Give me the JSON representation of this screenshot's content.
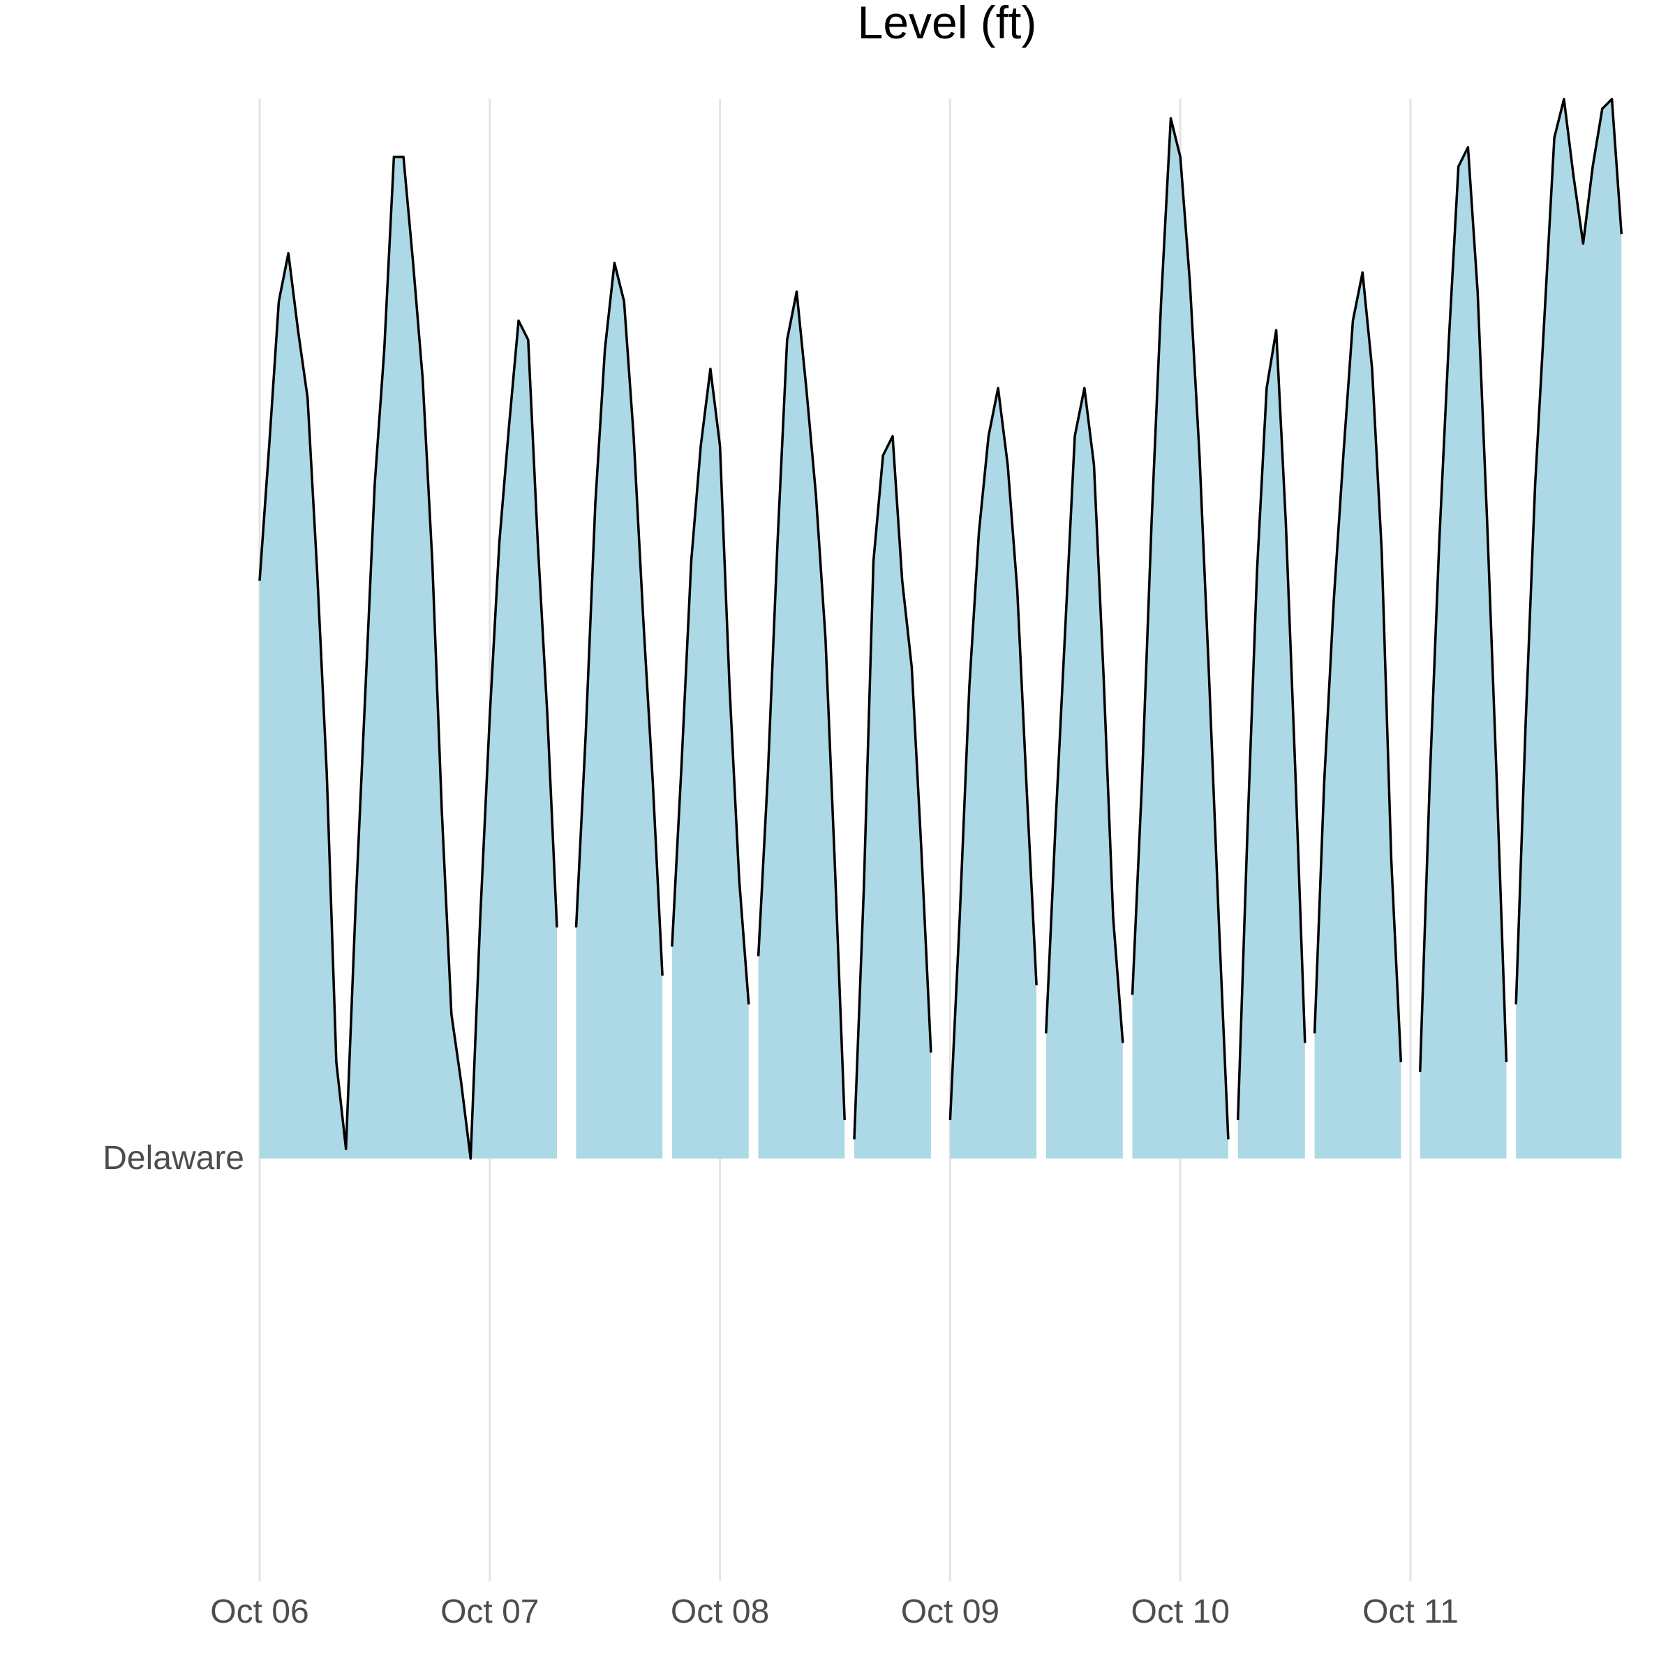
{
  "chart_data": {
    "type": "area",
    "title": "Level (ft)",
    "xlabel": "",
    "ylabel": "",
    "row_label": "Delaware",
    "x_ticks": [
      "Oct 06",
      "Oct 07",
      "Oct 08",
      "Oct 09",
      "Oct 10",
      "Oct 11"
    ],
    "x_range_days": [
      "Oct 06 00:00",
      "Oct 11 22:00"
    ],
    "ylim": [
      0,
      11
    ],
    "grid": "vertical-only",
    "fill_color": "#add8e6",
    "line_color": "#000000",
    "segments": [
      {
        "points": [
          [
            "Oct 06 00:00",
            6.0
          ],
          [
            "Oct 06 01:00",
            7.4
          ],
          [
            "Oct 06 02:00",
            8.9
          ],
          [
            "Oct 06 03:00",
            9.4
          ],
          [
            "Oct 06 04:00",
            8.6
          ],
          [
            "Oct 06 05:00",
            7.9
          ],
          [
            "Oct 06 06:00",
            6.1
          ],
          [
            "Oct 06 07:00",
            4.0
          ],
          [
            "Oct 06 08:00",
            1.0
          ],
          [
            "Oct 06 09:00",
            0.1
          ],
          [
            "Oct 06 10:00",
            2.6
          ],
          [
            "Oct 06 11:00",
            4.8
          ],
          [
            "Oct 06 12:00",
            7.0
          ],
          [
            "Oct 06 13:00",
            8.4
          ],
          [
            "Oct 06 14:00",
            10.4
          ],
          [
            "Oct 06 15:00",
            10.4
          ],
          [
            "Oct 06 16:00",
            9.3
          ],
          [
            "Oct 06 17:00",
            8.1
          ],
          [
            "Oct 06 18:00",
            6.2
          ],
          [
            "Oct 06 19:00",
            3.6
          ],
          [
            "Oct 06 20:00",
            1.5
          ],
          [
            "Oct 06 21:00",
            0.8
          ],
          [
            "Oct 06 22:00",
            0.0
          ],
          [
            "Oct 06 23:00",
            2.5
          ],
          [
            "Oct 07 00:00",
            4.6
          ],
          [
            "Oct 07 01:00",
            6.4
          ],
          [
            "Oct 07 02:00",
            7.6
          ],
          [
            "Oct 07 03:00",
            8.7
          ],
          [
            "Oct 07 04:00",
            8.5
          ],
          [
            "Oct 07 05:00",
            6.4
          ],
          [
            "Oct 07 06:00",
            4.6
          ],
          [
            "Oct 07 07:00",
            2.4
          ]
        ]
      },
      {
        "points": [
          [
            "Oct 07 09:00",
            2.4
          ],
          [
            "Oct 07 10:00",
            4.4
          ],
          [
            "Oct 07 11:00",
            6.8
          ],
          [
            "Oct 07 12:00",
            8.4
          ],
          [
            "Oct 07 13:00",
            9.3
          ],
          [
            "Oct 07 14:00",
            8.9
          ],
          [
            "Oct 07 15:00",
            7.5
          ],
          [
            "Oct 07 16:00",
            5.6
          ],
          [
            "Oct 07 17:00",
            3.9
          ],
          [
            "Oct 07 18:00",
            1.9
          ]
        ]
      },
      {
        "points": [
          [
            "Oct 07 19:00",
            2.2
          ],
          [
            "Oct 07 20:00",
            4.1
          ],
          [
            "Oct 07 21:00",
            6.2
          ],
          [
            "Oct 07 22:00",
            7.4
          ],
          [
            "Oct 07 23:00",
            8.2
          ],
          [
            "Oct 08 00:00",
            7.4
          ],
          [
            "Oct 08 01:00",
            4.9
          ],
          [
            "Oct 08 02:00",
            2.9
          ],
          [
            "Oct 08 03:00",
            1.6
          ]
        ]
      },
      {
        "points": [
          [
            "Oct 08 04:00",
            2.1
          ],
          [
            "Oct 08 05:00",
            4.0
          ],
          [
            "Oct 08 06:00",
            6.4
          ],
          [
            "Oct 08 07:00",
            8.5
          ],
          [
            "Oct 08 08:00",
            9.0
          ],
          [
            "Oct 08 09:00",
            8.0
          ],
          [
            "Oct 08 10:00",
            6.9
          ],
          [
            "Oct 08 11:00",
            5.4
          ],
          [
            "Oct 08 12:00",
            3.0
          ],
          [
            "Oct 08 13:00",
            0.4
          ]
        ]
      },
      {
        "points": [
          [
            "Oct 08 14:00",
            0.2
          ],
          [
            "Oct 08 15:00",
            2.8
          ],
          [
            "Oct 08 16:00",
            6.2
          ],
          [
            "Oct 08 17:00",
            7.3
          ],
          [
            "Oct 08 18:00",
            7.5
          ],
          [
            "Oct 08 19:00",
            6.0
          ],
          [
            "Oct 08 20:00",
            5.1
          ],
          [
            "Oct 08 21:00",
            3.2
          ],
          [
            "Oct 08 22:00",
            1.1
          ]
        ]
      },
      {
        "points": [
          [
            "Oct 09 00:00",
            0.4
          ],
          [
            "Oct 09 01:00",
            2.5
          ],
          [
            "Oct 09 02:00",
            4.9
          ],
          [
            "Oct 09 03:00",
            6.5
          ],
          [
            "Oct 09 04:00",
            7.5
          ],
          [
            "Oct 09 05:00",
            8.0
          ],
          [
            "Oct 09 06:00",
            7.2
          ],
          [
            "Oct 09 07:00",
            5.9
          ],
          [
            "Oct 09 08:00",
            3.8
          ],
          [
            "Oct 09 09:00",
            1.8
          ]
        ]
      },
      {
        "points": [
          [
            "Oct 09 10:00",
            1.3
          ],
          [
            "Oct 09 11:00",
            3.5
          ],
          [
            "Oct 09 12:00",
            5.5
          ],
          [
            "Oct 09 13:00",
            7.5
          ],
          [
            "Oct 09 14:00",
            8.0
          ],
          [
            "Oct 09 15:00",
            7.2
          ],
          [
            "Oct 09 16:00",
            5.0
          ],
          [
            "Oct 09 17:00",
            2.5
          ],
          [
            "Oct 09 18:00",
            1.2
          ]
        ]
      },
      {
        "points": [
          [
            "Oct 09 19:00",
            1.7
          ],
          [
            "Oct 09 20:00",
            3.9
          ],
          [
            "Oct 09 21:00",
            6.6
          ],
          [
            "Oct 09 22:00",
            8.9
          ],
          [
            "Oct 09 23:00",
            10.8
          ],
          [
            "Oct 10 00:00",
            10.4
          ],
          [
            "Oct 10 01:00",
            9.1
          ],
          [
            "Oct 10 02:00",
            7.3
          ],
          [
            "Oct 10 03:00",
            5.0
          ],
          [
            "Oct 10 04:00",
            2.5
          ],
          [
            "Oct 10 05:00",
            0.2
          ]
        ]
      },
      {
        "points": [
          [
            "Oct 10 06:00",
            0.4
          ],
          [
            "Oct 10 07:00",
            3.4
          ],
          [
            "Oct 10 08:00",
            6.1
          ],
          [
            "Oct 10 09:00",
            8.0
          ],
          [
            "Oct 10 10:00",
            8.6
          ],
          [
            "Oct 10 11:00",
            6.6
          ],
          [
            "Oct 10 12:00",
            4.0
          ],
          [
            "Oct 10 13:00",
            1.2
          ]
        ]
      },
      {
        "points": [
          [
            "Oct 10 14:00",
            1.3
          ],
          [
            "Oct 10 15:00",
            3.9
          ],
          [
            "Oct 10 16:00",
            5.8
          ],
          [
            "Oct 10 17:00",
            7.3
          ],
          [
            "Oct 10 18:00",
            8.7
          ],
          [
            "Oct 10 19:00",
            9.2
          ],
          [
            "Oct 10 20:00",
            8.2
          ],
          [
            "Oct 10 21:00",
            6.3
          ],
          [
            "Oct 10 22:00",
            3.1
          ],
          [
            "Oct 10 23:00",
            1.0
          ]
        ]
      },
      {
        "points": [
          [
            "Oct 11 01:00",
            0.9
          ],
          [
            "Oct 11 02:00",
            3.9
          ],
          [
            "Oct 11 03:00",
            6.4
          ],
          [
            "Oct 11 04:00",
            8.5
          ],
          [
            "Oct 11 05:00",
            10.3
          ],
          [
            "Oct 11 06:00",
            10.5
          ],
          [
            "Oct 11 07:00",
            9.0
          ],
          [
            "Oct 11 08:00",
            6.6
          ],
          [
            "Oct 11 09:00",
            3.9
          ],
          [
            "Oct 11 10:00",
            1.0
          ]
        ]
      },
      {
        "points": [
          [
            "Oct 11 11:00",
            1.6
          ],
          [
            "Oct 11 12:00",
            4.5
          ],
          [
            "Oct 11 13:00",
            7.0
          ],
          [
            "Oct 11 14:00",
            8.8
          ],
          [
            "Oct 11 15:00",
            10.6
          ],
          [
            "Oct 11 16:00",
            11.0
          ],
          [
            "Oct 11 17:00",
            10.2
          ],
          [
            "Oct 11 18:00",
            9.5
          ],
          [
            "Oct 11 19:00",
            10.3
          ],
          [
            "Oct 11 20:00",
            10.9
          ],
          [
            "Oct 11 21:00",
            11.0
          ],
          [
            "Oct 11 22:00",
            9.6
          ]
        ]
      }
    ]
  }
}
